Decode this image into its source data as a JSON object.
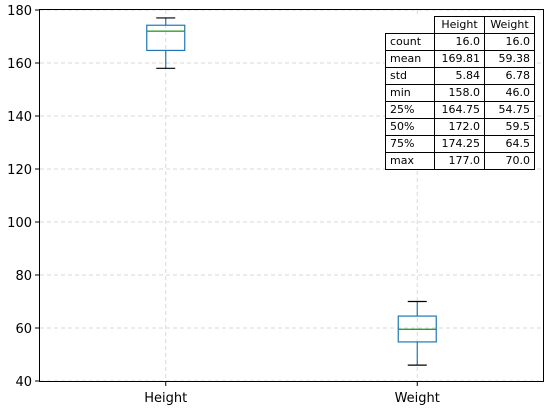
{
  "chart_data": {
    "type": "box",
    "categories": [
      "Height",
      "Weight"
    ],
    "ylim": [
      40,
      180
    ],
    "yticks": [
      40,
      60,
      80,
      100,
      120,
      140,
      160,
      180
    ],
    "grid": true,
    "boxes": [
      {
        "name": "Height",
        "whisker_low": 158.0,
        "q1": 164.75,
        "median": 172.0,
        "q3": 174.25,
        "whisker_high": 177.0
      },
      {
        "name": "Weight",
        "whisker_low": 46.0,
        "q1": 54.75,
        "median": 59.5,
        "q3": 64.5,
        "whisker_high": 70.0
      }
    ],
    "colors": {
      "box": "#1f77b4",
      "median": "#2ca02c",
      "cap": "#000000",
      "grid": "#d9d9d9"
    },
    "table": {
      "columns": [
        "Height",
        "Weight"
      ],
      "rows": [
        {
          "label": "count",
          "values": [
            "16.0",
            "16.0"
          ]
        },
        {
          "label": "mean",
          "values": [
            "169.81",
            "59.38"
          ]
        },
        {
          "label": "std",
          "values": [
            "5.84",
            "6.78"
          ]
        },
        {
          "label": "min",
          "values": [
            "158.0",
            "46.0"
          ]
        },
        {
          "label": "25%",
          "values": [
            "164.75",
            "54.75"
          ]
        },
        {
          "label": "50%",
          "values": [
            "172.0",
            "59.5"
          ]
        },
        {
          "label": "75%",
          "values": [
            "174.25",
            "64.5"
          ]
        },
        {
          "label": "max",
          "values": [
            "177.0",
            "70.0"
          ]
        }
      ]
    }
  }
}
